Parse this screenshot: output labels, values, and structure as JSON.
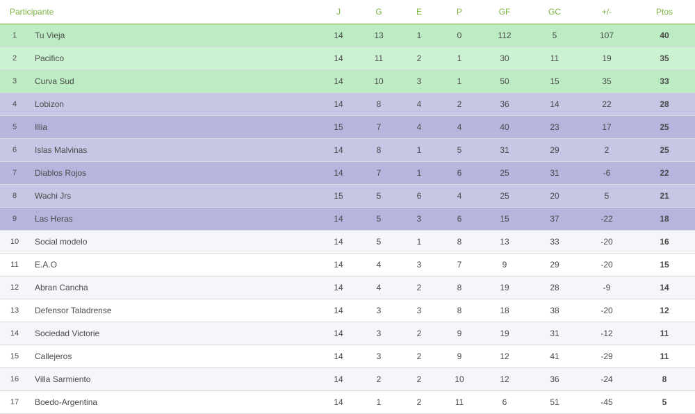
{
  "standings": {
    "type": "table",
    "header_color": "#7cb342",
    "header_border_color": "#7cb342",
    "text_color_body": "#4a4a4a",
    "row_border_color": "#d9d9d9",
    "font_family": "Arial",
    "font_size_header_pt": 9,
    "font_size_body_pt": 9,
    "zones": {
      "green": {
        "bg_odd": "#bdecc4",
        "bg_even": "#ccf2d2"
      },
      "purple": {
        "bg_odd": "#b5b5dd",
        "bg_even": "#c6c6e5"
      },
      "plain": {
        "bg_odd": "#ffffff",
        "bg_even": "#f5f6fa"
      }
    },
    "columns": [
      {
        "key": "participante",
        "label": "Participante",
        "align": "left"
      },
      {
        "key": "j",
        "label": "J"
      },
      {
        "key": "g",
        "label": "G"
      },
      {
        "key": "e",
        "label": "E"
      },
      {
        "key": "p",
        "label": "P"
      },
      {
        "key": "gf",
        "label": "GF"
      },
      {
        "key": "gc",
        "label": "GC"
      },
      {
        "key": "diff",
        "label": "+/-"
      },
      {
        "key": "ptos",
        "label": "Ptos"
      }
    ],
    "rows": [
      {
        "pos": 1,
        "team": "Tu Vieja",
        "j": 14,
        "g": 13,
        "e": 1,
        "p": 0,
        "gf": 112,
        "gc": 5,
        "diff": 107,
        "ptos": 40,
        "zone": "green"
      },
      {
        "pos": 2,
        "team": "Pacifico",
        "j": 14,
        "g": 11,
        "e": 2,
        "p": 1,
        "gf": 30,
        "gc": 11,
        "diff": 19,
        "ptos": 35,
        "zone": "green"
      },
      {
        "pos": 3,
        "team": "Curva Sud",
        "j": 14,
        "g": 10,
        "e": 3,
        "p": 1,
        "gf": 50,
        "gc": 15,
        "diff": 35,
        "ptos": 33,
        "zone": "green"
      },
      {
        "pos": 4,
        "team": "Lobizon",
        "j": 14,
        "g": 8,
        "e": 4,
        "p": 2,
        "gf": 36,
        "gc": 14,
        "diff": 22,
        "ptos": 28,
        "zone": "purple"
      },
      {
        "pos": 5,
        "team": "Illia",
        "j": 15,
        "g": 7,
        "e": 4,
        "p": 4,
        "gf": 40,
        "gc": 23,
        "diff": 17,
        "ptos": 25,
        "zone": "purple"
      },
      {
        "pos": 6,
        "team": "Islas Malvinas",
        "j": 14,
        "g": 8,
        "e": 1,
        "p": 5,
        "gf": 31,
        "gc": 29,
        "diff": 2,
        "ptos": 25,
        "zone": "purple"
      },
      {
        "pos": 7,
        "team": "Diablos Rojos",
        "j": 14,
        "g": 7,
        "e": 1,
        "p": 6,
        "gf": 25,
        "gc": 31,
        "diff": -6,
        "ptos": 22,
        "zone": "purple"
      },
      {
        "pos": 8,
        "team": "Wachi Jrs",
        "j": 15,
        "g": 5,
        "e": 6,
        "p": 4,
        "gf": 25,
        "gc": 20,
        "diff": 5,
        "ptos": 21,
        "zone": "purple"
      },
      {
        "pos": 9,
        "team": "Las Heras",
        "j": 14,
        "g": 5,
        "e": 3,
        "p": 6,
        "gf": 15,
        "gc": 37,
        "diff": -22,
        "ptos": 18,
        "zone": "purple"
      },
      {
        "pos": 10,
        "team": "Social modelo",
        "j": 14,
        "g": 5,
        "e": 1,
        "p": 8,
        "gf": 13,
        "gc": 33,
        "diff": -20,
        "ptos": 16,
        "zone": "plain"
      },
      {
        "pos": 11,
        "team": "E.A.O",
        "j": 14,
        "g": 4,
        "e": 3,
        "p": 7,
        "gf": 9,
        "gc": 29,
        "diff": -20,
        "ptos": 15,
        "zone": "plain"
      },
      {
        "pos": 12,
        "team": "Abran Cancha",
        "j": 14,
        "g": 4,
        "e": 2,
        "p": 8,
        "gf": 19,
        "gc": 28,
        "diff": -9,
        "ptos": 14,
        "zone": "plain"
      },
      {
        "pos": 13,
        "team": "Defensor Taladrense",
        "j": 14,
        "g": 3,
        "e": 3,
        "p": 8,
        "gf": 18,
        "gc": 38,
        "diff": -20,
        "ptos": 12,
        "zone": "plain"
      },
      {
        "pos": 14,
        "team": "Sociedad Victorie",
        "j": 14,
        "g": 3,
        "e": 2,
        "p": 9,
        "gf": 19,
        "gc": 31,
        "diff": -12,
        "ptos": 11,
        "zone": "plain"
      },
      {
        "pos": 15,
        "team": "Callejeros",
        "j": 14,
        "g": 3,
        "e": 2,
        "p": 9,
        "gf": 12,
        "gc": 41,
        "diff": -29,
        "ptos": 11,
        "zone": "plain"
      },
      {
        "pos": 16,
        "team": "Villa Sarmiento",
        "j": 14,
        "g": 2,
        "e": 2,
        "p": 10,
        "gf": 12,
        "gc": 36,
        "diff": -24,
        "ptos": 8,
        "zone": "plain"
      },
      {
        "pos": 17,
        "team": "Boedo-Argentina",
        "j": 14,
        "g": 1,
        "e": 2,
        "p": 11,
        "gf": 6,
        "gc": 51,
        "diff": -45,
        "ptos": 5,
        "zone": "plain"
      }
    ]
  }
}
